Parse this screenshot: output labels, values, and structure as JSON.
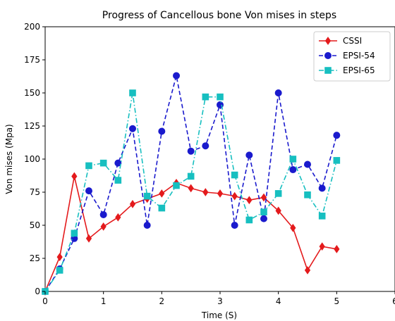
{
  "chart_data": {
    "type": "line",
    "title": "Progress of Cancellous bone Von mises in steps",
    "xlabel": "Time (S)",
    "ylabel": "Von mises (Mpa)",
    "xlim": [
      0,
      6
    ],
    "ylim": [
      0,
      200
    ],
    "xticks": [
      0,
      1,
      2,
      3,
      4,
      5,
      6
    ],
    "yticks": [
      0,
      25,
      50,
      75,
      100,
      125,
      150,
      175,
      200
    ],
    "grid": false,
    "legend_position": "top-right",
    "x": [
      0,
      0.25,
      0.5,
      0.75,
      1,
      1.25,
      1.5,
      1.75,
      2,
      2.25,
      2.5,
      2.75,
      3,
      3.25,
      3.5,
      3.75,
      4,
      4.25,
      4.5,
      4.75,
      5
    ],
    "series": [
      {
        "name": "CSSI",
        "color": "#e41a1c",
        "marker": "diamond",
        "linestyle": "solid",
        "values": [
          0,
          26,
          87,
          40,
          49,
          56,
          66,
          70,
          74,
          82,
          78,
          75,
          74,
          72,
          69,
          71,
          61,
          48,
          16,
          34,
          32
        ]
      },
      {
        "name": "EPSI-54",
        "color": "#1a1acd",
        "marker": "circle",
        "linestyle": "dashed",
        "values": [
          0,
          17,
          40,
          76,
          58,
          97,
          123,
          50,
          121,
          163,
          106,
          110,
          141,
          50,
          103,
          55,
          150,
          92,
          96,
          78,
          118
        ]
      },
      {
        "name": "EPSI-65",
        "color": "#17bfc0",
        "marker": "square",
        "linestyle": "dashdot",
        "values": [
          0,
          16,
          44,
          95,
          97,
          84,
          150,
          72,
          63,
          80,
          87,
          147,
          147,
          88,
          54,
          60,
          74,
          100,
          73,
          57,
          99
        ]
      }
    ]
  }
}
